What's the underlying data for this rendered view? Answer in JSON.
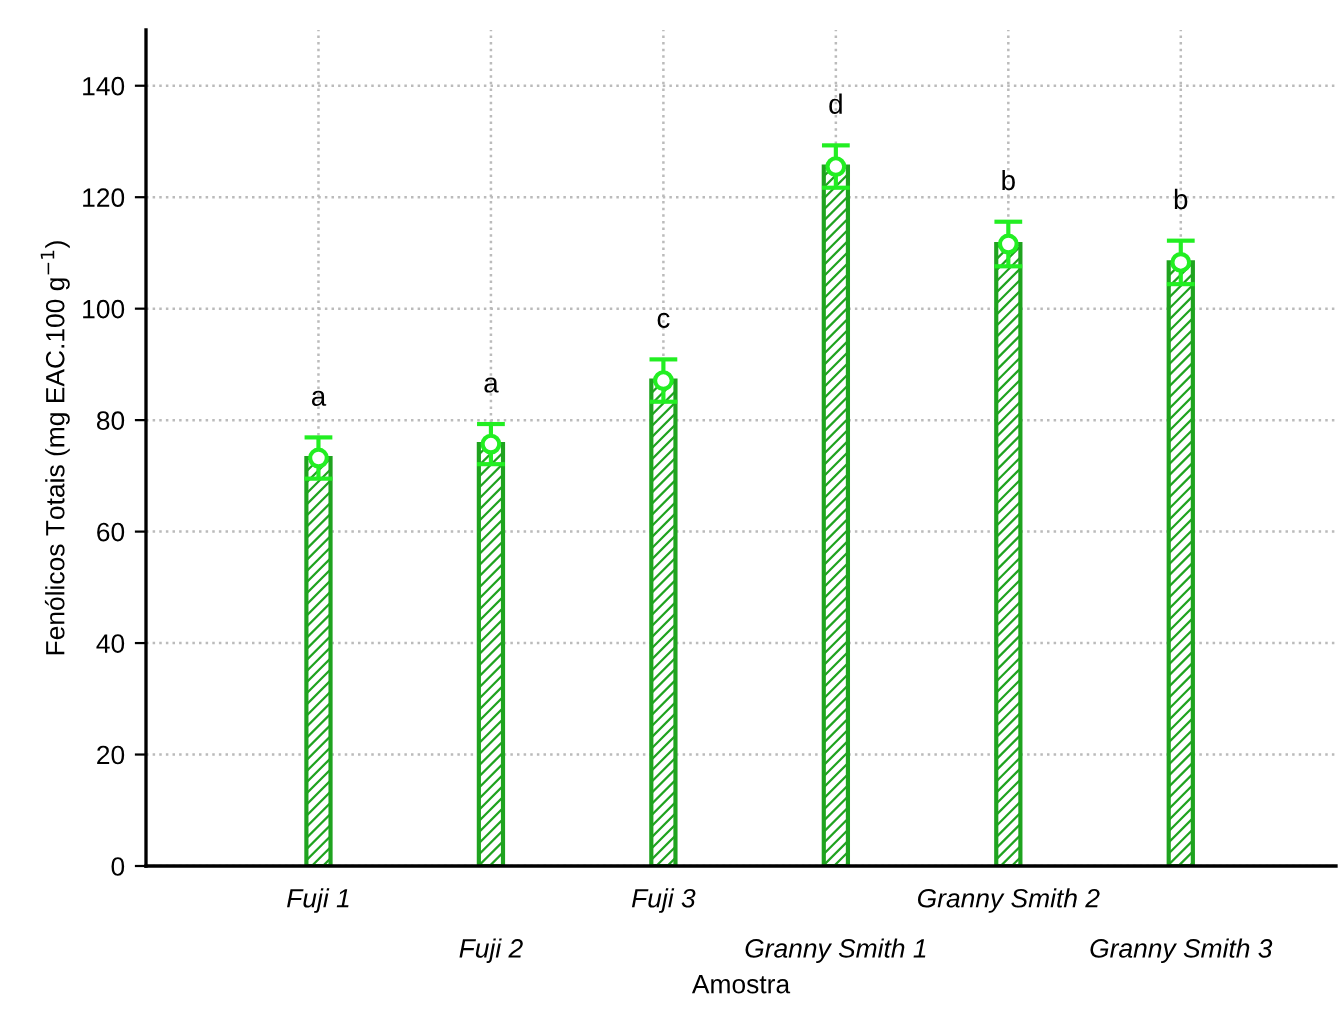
{
  "chart_data": {
    "type": "bar",
    "xlabel": "Amostra",
    "ylabel": "Fenólicos Totais (mg EAC.100 g$^{−1}$)",
    "categories": [
      "Fuji 1",
      "Fuji 2",
      "Fuji 3",
      "Granny Smith 1",
      "Granny Smith 2",
      "Granny Smith 3"
    ],
    "series": [
      {
        "color": "#1fa31f",
        "values": [
          73.2,
          75.7,
          87.1,
          125.5,
          111.6,
          108.3
        ],
        "errors": [
          3.7,
          3.6,
          3.8,
          3.8,
          4.0,
          3.9
        ]
      },
      {
        "type": "scatter",
        "color": "#22ee22",
        "x": [
          "Fuji 1",
          "Fuji 2",
          "Fuji 3",
          "Granny Smith 1",
          "Granny Smith 2",
          "Granny Smith 3"
        ],
        "values": [
          73.2,
          75.7,
          87.1,
          125.5,
          111.6,
          108.3
        ]
      }
    ],
    "ylim": [
      0,
      150
    ],
    "yticks": [
      0,
      20,
      40,
      60,
      80,
      100,
      120,
      140
    ],
    "grid": true,
    "marker": "circle",
    "annotations": [
      "a",
      "a",
      "c",
      "d",
      "b",
      "b"
    ]
  }
}
